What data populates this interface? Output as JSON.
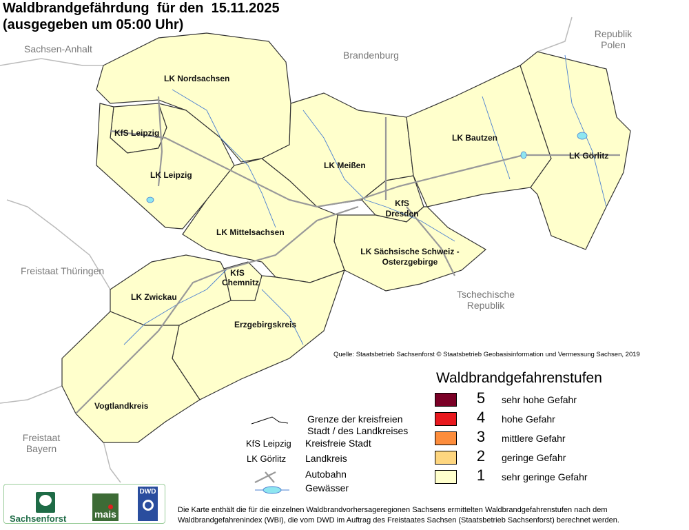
{
  "title": {
    "line1": "Waldbrandgefährdung  für den  15.11.2025",
    "line2": "(ausgegeben um 05:00 Uhr)"
  },
  "neighbors": [
    "Sachsen-Anhalt",
    "Brandenburg",
    "Republik Polen",
    "Freistaat Thüringen",
    "Tschechische Republik",
    "Freistaat Bayern"
  ],
  "districts": [
    {
      "name": "LK Nordsachsen",
      "level": 1
    },
    {
      "name": "KfS Leipzig",
      "level": 1
    },
    {
      "name": "LK Leipzig",
      "level": 1
    },
    {
      "name": "LK Meißen",
      "level": 1
    },
    {
      "name": "LK Bautzen",
      "level": 1
    },
    {
      "name": "LK Görlitz",
      "level": 1
    },
    {
      "name": "KfS Dresden",
      "level": 1
    },
    {
      "name": "LK Sächsische Schweiz - Osterzgebirge",
      "level": 1
    },
    {
      "name": "LK Mittelsachsen",
      "level": 1
    },
    {
      "name": "KfS Chemnitz",
      "level": 1
    },
    {
      "name": "LK Zwickau",
      "level": 1
    },
    {
      "name": "Erzgebirgskreis",
      "level": 1
    },
    {
      "name": "Vogtlandkreis",
      "level": 1
    }
  ],
  "source": "Quelle: Staatsbetrieb Sachsenforst  © Staatsbetrieb Geobasisinformation und Vermessung Sachsen, 2019",
  "legend": {
    "title": "Waldbrandgefahrenstufen",
    "levels": [
      {
        "num": "5",
        "label": "sehr hohe Gefahr",
        "color": "#7a0026"
      },
      {
        "num": "4",
        "label": "hohe Gefahr",
        "color": "#e8191e"
      },
      {
        "num": "3",
        "label": "mittlere Gefahr",
        "color": "#fd8d3c"
      },
      {
        "num": "2",
        "label": "geringe Gefahr",
        "color": "#fed67f"
      },
      {
        "num": "1",
        "label": "sehr geringe Gefahr",
        "color": "#ffffcc"
      }
    ]
  },
  "symbols": {
    "border": "Grenze der kreisfreien Stadt / des Landkreises",
    "kfs_example": "KfS Leipzig",
    "kfs_label": "Kreisfreie Stadt",
    "lk_example": "LK Görlitz",
    "lk_label": "Landkreis",
    "autobahn": "Autobahn",
    "water": "Gewässer"
  },
  "logos": [
    "Sachsenforst",
    "mais",
    "DWD"
  ],
  "footnote": {
    "line1": "Die Karte enthält die für die einzelnen Waldbrandvorhersageregionen Sachsens ermittelten Waldbrandgefahrenstufen nach dem",
    "line2": "Waldbrandgefahrenindex (WBI), die vom DWD im Auftrag des Freistaates Sachsen (Staatsbetrieb Sachsenforst) berechnet werden."
  }
}
